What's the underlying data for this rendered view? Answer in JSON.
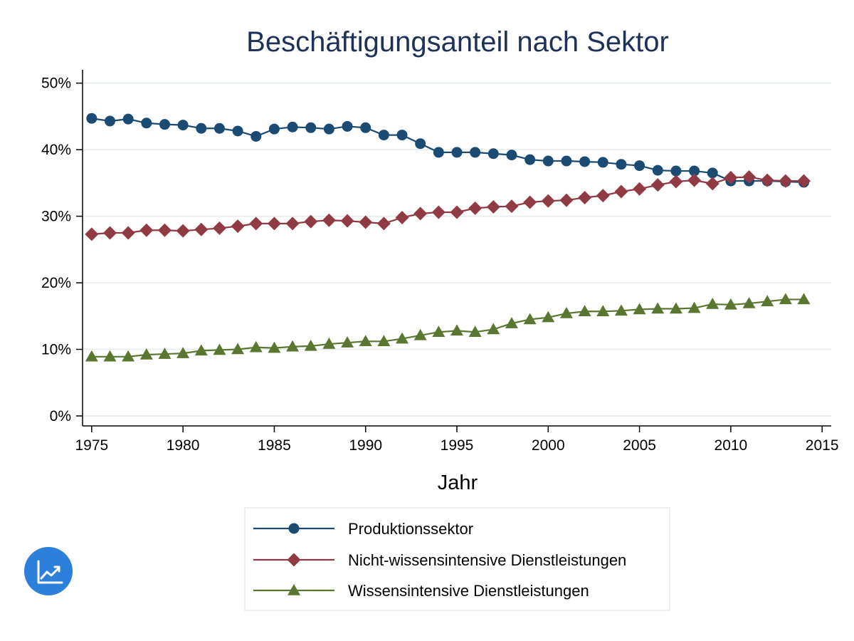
{
  "chart_data": {
    "type": "line",
    "title": "Beschäftigungsanteil nach Sektor",
    "xlabel": "Jahr",
    "ylabel": "",
    "xlim": [
      1974.5,
      2015.5
    ],
    "ylim": [
      -1.5,
      52
    ],
    "x_ticks": [
      1975,
      1980,
      1985,
      1990,
      1995,
      2000,
      2005,
      2010,
      2015
    ],
    "y_ticks": [
      0,
      10,
      20,
      30,
      40,
      50
    ],
    "y_tick_labels": [
      "0%",
      "10%",
      "20%",
      "30%",
      "40%",
      "50%"
    ],
    "grid": "horizontal",
    "legend_position": "bottom",
    "x": [
      1975,
      1976,
      1977,
      1978,
      1979,
      1980,
      1981,
      1982,
      1983,
      1984,
      1985,
      1986,
      1987,
      1988,
      1989,
      1990,
      1991,
      1992,
      1993,
      1994,
      1995,
      1996,
      1997,
      1998,
      1999,
      2000,
      2001,
      2002,
      2003,
      2004,
      2005,
      2006,
      2007,
      2008,
      2009,
      2010,
      2011,
      2012,
      2013,
      2014
    ],
    "series": [
      {
        "name": "Produktionssektor",
        "color": "#1b4b72",
        "marker": "circle",
        "values": [
          44.7,
          44.3,
          44.6,
          44.0,
          43.8,
          43.7,
          43.2,
          43.2,
          42.8,
          42.0,
          43.1,
          43.4,
          43.3,
          43.1,
          43.5,
          43.3,
          42.2,
          42.2,
          40.9,
          39.6,
          39.6,
          39.6,
          39.4,
          39.2,
          38.5,
          38.3,
          38.3,
          38.2,
          38.1,
          37.8,
          37.6,
          36.9,
          36.8,
          36.8,
          36.5,
          35.3,
          35.3,
          35.3,
          35.2,
          35.1
        ]
      },
      {
        "name": "Nicht-wissensintensive Dienstleistungen",
        "color": "#903a44",
        "marker": "diamond",
        "values": [
          27.3,
          27.5,
          27.5,
          27.9,
          27.9,
          27.8,
          28.0,
          28.2,
          28.5,
          28.9,
          28.9,
          28.9,
          29.2,
          29.4,
          29.3,
          29.1,
          28.9,
          29.8,
          30.4,
          30.6,
          30.6,
          31.2,
          31.4,
          31.5,
          32.1,
          32.3,
          32.4,
          32.8,
          33.1,
          33.7,
          34.1,
          34.7,
          35.2,
          35.4,
          34.9,
          35.8,
          35.9,
          35.4,
          35.3,
          35.3
        ]
      },
      {
        "name": "Wissensintensive Dienstleistungen",
        "color": "#5a7731",
        "marker": "triangle",
        "values": [
          8.9,
          8.9,
          8.9,
          9.2,
          9.3,
          9.4,
          9.8,
          9.9,
          10.0,
          10.3,
          10.2,
          10.4,
          10.5,
          10.8,
          11.0,
          11.2,
          11.2,
          11.6,
          12.1,
          12.6,
          12.8,
          12.6,
          13.0,
          13.9,
          14.5,
          14.8,
          15.4,
          15.7,
          15.7,
          15.8,
          16.0,
          16.1,
          16.1,
          16.2,
          16.8,
          16.7,
          16.9,
          17.2,
          17.5,
          17.5
        ]
      }
    ]
  },
  "logo_icon": "trend-chart-icon"
}
